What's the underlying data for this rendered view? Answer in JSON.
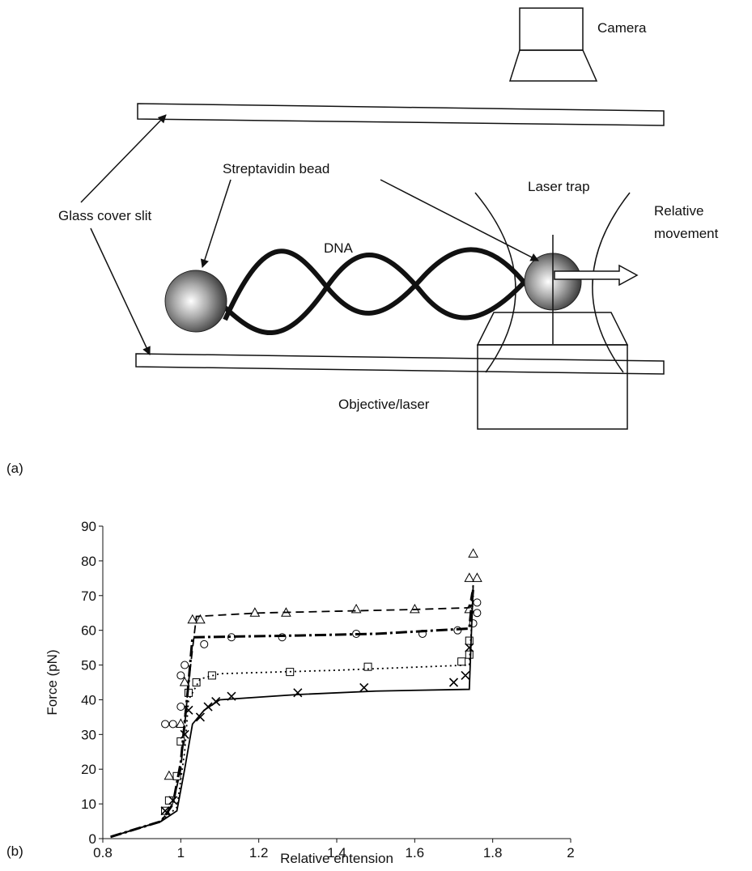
{
  "panels": [
    "(a)",
    "(b)"
  ],
  "diagram": {
    "camera": "Camera",
    "streptavidin": "Streptavidin bead",
    "laser_trap": "Laser trap",
    "relative_movement": [
      "Relative",
      "movement"
    ],
    "glass": "Glass cover slit",
    "dna": "DNA",
    "objective": "Objective/laser"
  },
  "chart_data": {
    "type": "line",
    "x_label": "Relative entension",
    "y_label": "Force (pN)",
    "xlim": [
      0.8,
      2
    ],
    "ylim": [
      0,
      90
    ],
    "xticks": [
      0.8,
      1,
      1.2,
      1.4,
      1.6,
      1.8,
      2
    ],
    "yticks": [
      0,
      10,
      20,
      30,
      40,
      50,
      60,
      70,
      80,
      90
    ],
    "series": [
      {
        "color": "#000",
        "line": "dashed",
        "x": [
          0.82,
          0.95,
          0.98,
          1.0,
          1.02,
          1.04,
          1.2,
          1.4,
          1.6,
          1.74,
          1.75
        ],
        "values": [
          0.5,
          5,
          10,
          20,
          45,
          64,
          65,
          65.5,
          66,
          66.5,
          73
        ]
      },
      {
        "color": "#000",
        "line": "dashdot",
        "x": [
          0.82,
          0.95,
          0.98,
          1.0,
          1.02,
          1.03,
          1.3,
          1.5,
          1.74,
          1.75
        ],
        "values": [
          0.5,
          5,
          10,
          22,
          45,
          58,
          58.5,
          59,
          60.5,
          72
        ]
      },
      {
        "color": "#000",
        "line": "dotted",
        "x": [
          0.82,
          0.95,
          0.99,
          1.01,
          1.02,
          1.05,
          1.1,
          1.4,
          1.74,
          1.75
        ],
        "values": [
          0.5,
          5,
          9,
          25,
          40,
          46,
          47.5,
          48.5,
          50,
          70
        ]
      },
      {
        "color": "#000",
        "line": "solid",
        "x": [
          0.82,
          0.95,
          0.99,
          1.01,
          1.03,
          1.06,
          1.1,
          1.3,
          1.5,
          1.74,
          1.75
        ],
        "values": [
          0.5,
          5,
          8,
          20,
          33,
          37,
          40,
          41.5,
          42.5,
          43,
          73
        ]
      },
      {
        "color": "#000",
        "marker": "triangle",
        "x": [
          0.97,
          1.0,
          1.01,
          1.03,
          1.05,
          1.19,
          1.27,
          1.45,
          1.6,
          1.74,
          1.74,
          1.75,
          1.76
        ],
        "values": [
          18,
          33,
          45,
          63,
          63,
          65,
          65,
          66,
          66,
          66,
          75,
          82,
          75
        ]
      },
      {
        "color": "#000",
        "marker": "circle",
        "x": [
          0.96,
          0.98,
          1.0,
          1.0,
          1.01,
          1.06,
          1.13,
          1.26,
          1.45,
          1.62,
          1.71,
          1.75,
          1.76,
          1.76
        ],
        "values": [
          33,
          33,
          38,
          47,
          50,
          56,
          58,
          58,
          59,
          59,
          60,
          62,
          65,
          68
        ]
      },
      {
        "color": "#000",
        "marker": "square",
        "x": [
          0.96,
          0.97,
          0.99,
          1.0,
          1.02,
          1.04,
          1.08,
          1.28,
          1.48,
          1.72,
          1.74,
          1.74
        ],
        "values": [
          8,
          11,
          18,
          28,
          42,
          45,
          47,
          48,
          49.5,
          51,
          53,
          57
        ]
      },
      {
        "color": "#000",
        "marker": "cross",
        "x": [
          0.96,
          0.98,
          1.01,
          1.02,
          1.05,
          1.07,
          1.09,
          1.13,
          1.3,
          1.47,
          1.7,
          1.73,
          1.74
        ],
        "values": [
          8,
          11,
          30,
          37,
          35,
          38,
          39.5,
          41,
          42,
          43.5,
          45,
          47,
          55
        ]
      }
    ]
  }
}
